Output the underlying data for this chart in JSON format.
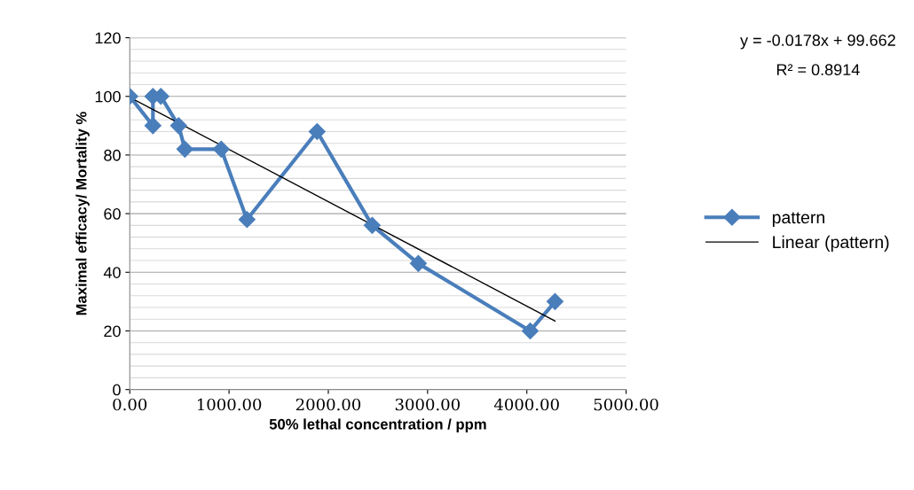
{
  "chart_data": {
    "type": "line",
    "xlabel": "50% lethal concentration / ppm",
    "ylabel": "Maximal efficacy/ Mortality %",
    "xlim": [
      0,
      5000
    ],
    "xticks": [
      {
        "value": 0,
        "label": "0.00"
      },
      {
        "value": 1000,
        "label": "1000.00"
      },
      {
        "value": 2000,
        "label": "2000.00"
      },
      {
        "value": 3000,
        "label": "3000.00"
      },
      {
        "value": 4000,
        "label": "4000.00"
      },
      {
        "value": 5000,
        "label": "5000.00"
      }
    ],
    "ylim": [
      0,
      120
    ],
    "yticks": [
      0,
      20,
      40,
      60,
      80,
      100,
      120
    ],
    "grid": "y",
    "legend": "right",
    "series": [
      {
        "name": "pattern",
        "color": "#4a7ebb",
        "marker": "diamond",
        "line_style": "solid",
        "x": [
          0,
          233,
          233,
          313,
          492,
          555,
          921,
          1181,
          1887,
          2442,
          2907,
          4034,
          4284
        ],
        "values": [
          100,
          90,
          100,
          100,
          90,
          82,
          82,
          58,
          88,
          56,
          43,
          20,
          30
        ]
      },
      {
        "name": "Linear (pattern)",
        "color": "#000000",
        "marker": "none",
        "line_style": "solid",
        "x": [
          0,
          4284
        ],
        "values": [
          99.7,
          23.4
        ]
      }
    ],
    "annotations": [
      "y = -0.0178x + 99.662",
      "R² = 0.8914"
    ]
  }
}
